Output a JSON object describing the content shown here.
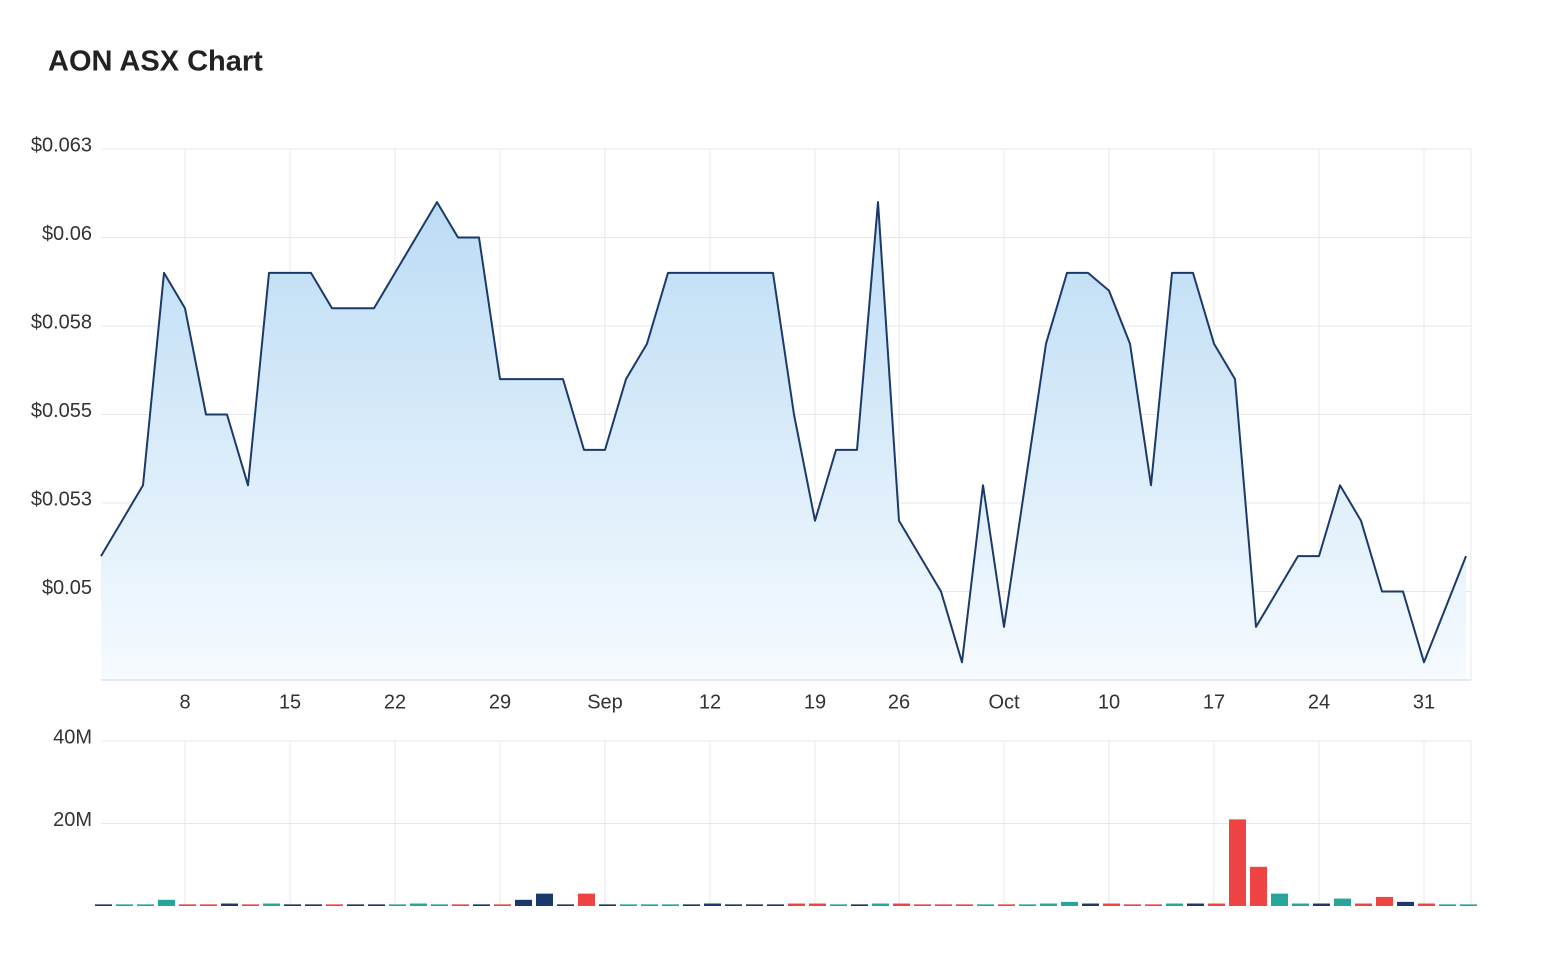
{
  "chart_data": [
    {
      "type": "area",
      "title": "AON ASX Chart",
      "categories": [
        null,
        null,
        null,
        null,
        "8",
        null,
        null,
        null,
        null,
        "15",
        null,
        null,
        null,
        null,
        "22",
        null,
        null,
        null,
        null,
        "29",
        null,
        null,
        null,
        null,
        "Sep",
        null,
        null,
        null,
        null,
        "12",
        null,
        null,
        null,
        null,
        "19",
        null,
        null,
        null,
        "26",
        null,
        null,
        null,
        null,
        "Oct",
        null,
        null,
        null,
        null,
        "10",
        null,
        null,
        null,
        null,
        "17",
        null,
        null,
        null,
        null,
        "24",
        null,
        null,
        null,
        null,
        "31",
        null,
        null
      ],
      "values": [
        0.051,
        0.052,
        0.053,
        0.059,
        0.058,
        0.055,
        0.055,
        0.053,
        0.059,
        0.059,
        0.059,
        0.058,
        0.058,
        0.058,
        0.059,
        0.06,
        0.061,
        0.06,
        0.06,
        0.056,
        0.056,
        0.056,
        0.056,
        0.054,
        0.054,
        0.056,
        0.057,
        0.059,
        0.059,
        0.059,
        0.059,
        0.059,
        0.059,
        0.055,
        0.052,
        0.054,
        0.054,
        0.061,
        0.052,
        0.051,
        0.05,
        0.048,
        0.053,
        0.049,
        0.053,
        0.057,
        0.059,
        0.059,
        0.0585,
        0.057,
        0.053,
        0.059,
        0.059,
        0.057,
        0.056,
        0.049,
        0.05,
        0.051,
        0.051,
        0.053,
        0.052,
        0.05,
        0.05,
        0.048,
        0.0495,
        0.051
      ],
      "color": "#1b3a6b",
      "fill_top": "#bcdcf5",
      "fill_bottom": "#f6fbff",
      "ylim": [
        0.0475,
        0.0625
      ],
      "yticks": [
        {
          "value": 0.0625,
          "label": "$0.063"
        },
        {
          "value": 0.06,
          "label": "$0.06"
        },
        {
          "value": 0.0575,
          "label": "$0.058"
        },
        {
          "value": 0.055,
          "label": "$0.055"
        },
        {
          "value": 0.0525,
          "label": "$0.053"
        },
        {
          "value": 0.05,
          "label": "$0.05"
        }
      ],
      "grid": true
    },
    {
      "type": "bar",
      "values": [
        400000,
        400000,
        400000,
        1500000,
        400000,
        400000,
        600000,
        400000,
        600000,
        400000,
        400000,
        400000,
        400000,
        400000,
        400000,
        600000,
        400000,
        400000,
        400000,
        400000,
        1500000,
        3000000,
        400000,
        3000000,
        400000,
        400000,
        400000,
        400000,
        400000,
        600000,
        400000,
        400000,
        400000,
        600000,
        600000,
        400000,
        400000,
        600000,
        600000,
        400000,
        400000,
        400000,
        400000,
        400000,
        400000,
        600000,
        1000000,
        600000,
        600000,
        400000,
        400000,
        600000,
        600000,
        600000,
        21000000,
        9500000,
        3000000,
        600000,
        600000,
        1800000,
        600000,
        2200000,
        1000000,
        600000,
        400000,
        400000
      ],
      "up_color": "#26a69a",
      "down_color": "#ef4444",
      "flat_color": "#1b3a6b",
      "ylim": [
        0,
        40000000
      ],
      "yticks": [
        {
          "value": 40000000,
          "label": "40M"
        },
        {
          "value": 20000000,
          "label": "20M"
        }
      ],
      "grid": true
    }
  ]
}
